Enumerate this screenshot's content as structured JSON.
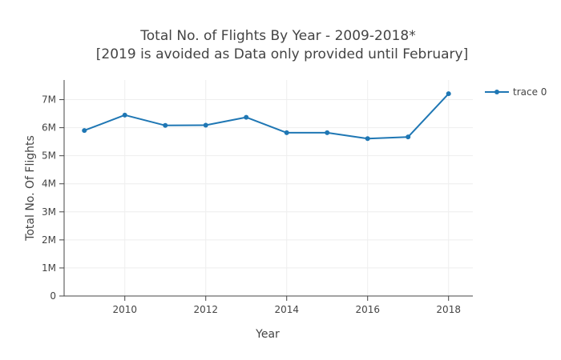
{
  "chart_data": {
    "type": "line",
    "title": "Total No. of Flights By Year - 2009-2018*",
    "subtitle": "[2019 is avoided as Data only provided until February]",
    "xlabel": "Year",
    "ylabel": "Total No. Of Flights",
    "x": [
      2009,
      2010,
      2011,
      2012,
      2013,
      2014,
      2015,
      2016,
      2017,
      2018
    ],
    "series": [
      {
        "name": "trace 0",
        "values": [
          5900000,
          6450000,
          6080000,
          6090000,
          6370000,
          5820000,
          5820000,
          5610000,
          5670000,
          7210000
        ]
      }
    ],
    "xlim": [
      2008.5,
      2018.6
    ],
    "ylim": [
      0,
      7700000
    ],
    "x_ticks": [
      2010,
      2012,
      2014,
      2016,
      2018
    ],
    "x_tick_labels": [
      "2010",
      "2012",
      "2014",
      "2016",
      "2018"
    ],
    "y_ticks": [
      0,
      1000000,
      2000000,
      3000000,
      4000000,
      5000000,
      6000000,
      7000000
    ],
    "y_tick_labels": [
      "0",
      "1M",
      "2M",
      "3M",
      "4M",
      "5M",
      "6M",
      "7M"
    ],
    "grid": true,
    "legend_position": "top-right",
    "colors": {
      "series": "#1f77b4",
      "grid": "#eeeeee",
      "axis": "#444444",
      "text": "#444444"
    }
  }
}
